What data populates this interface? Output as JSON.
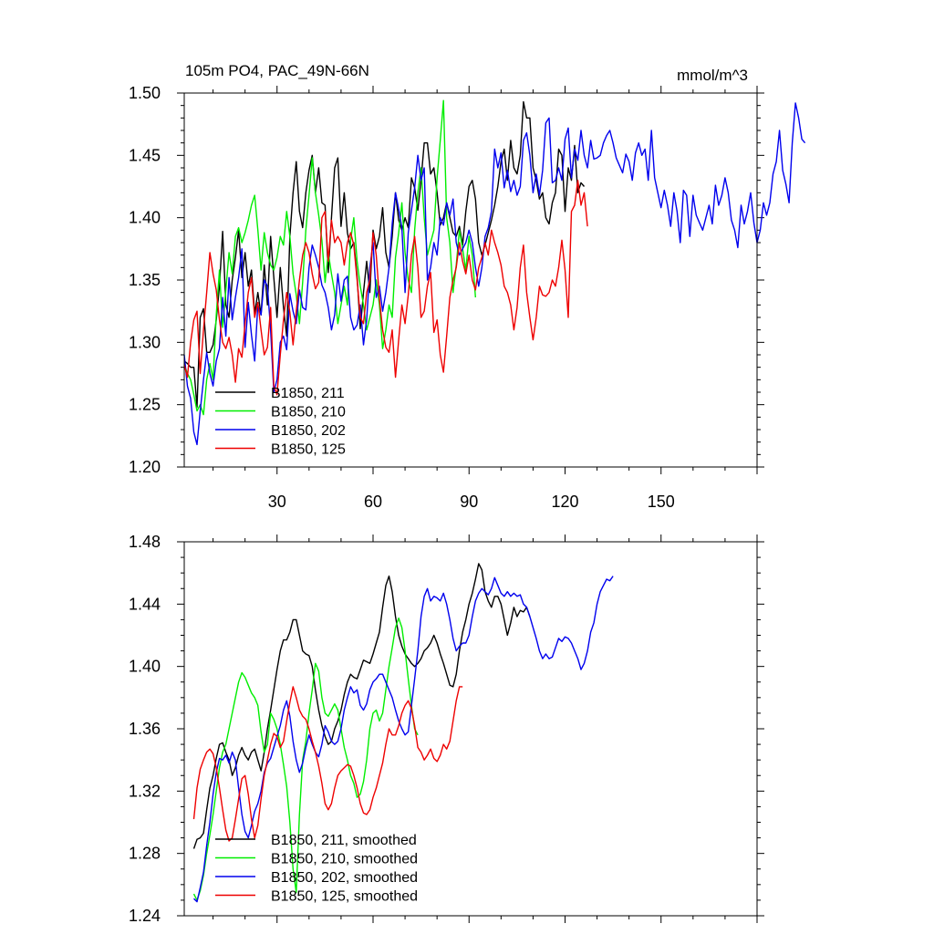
{
  "chart_data": [
    {
      "type": "line",
      "title": "105m PO4, PAC_49N-66N",
      "units": "mmol/m^3",
      "xlim": [
        1,
        180
      ],
      "ylim": [
        1.2,
        1.5
      ],
      "yticks": [
        "1.20",
        "1.25",
        "1.30",
        "1.35",
        "1.40",
        "1.45",
        "1.50"
      ],
      "xticks": [
        "30",
        "60",
        "90",
        "120",
        "150"
      ],
      "legend_position": "bottom-left",
      "series": [
        {
          "name": "B1850, 211",
          "color": "#000000",
          "x_start": 1,
          "values": [
            1.285,
            1.283,
            1.28,
            1.28,
            1.248,
            1.32,
            1.327,
            1.292,
            1.292,
            1.298,
            1.318,
            1.345,
            1.389,
            1.33,
            1.32,
            1.35,
            1.368,
            1.39,
            1.352,
            1.372,
            1.345,
            1.358,
            1.323,
            1.34,
            1.322,
            1.362,
            1.33,
            1.385,
            1.352,
            1.32,
            1.36,
            1.328,
            1.305,
            1.385,
            1.42,
            1.445,
            1.405,
            1.392,
            1.42,
            1.438,
            1.45,
            1.42,
            1.44,
            1.412,
            1.41,
            1.356,
            1.4,
            1.44,
            1.448,
            1.393,
            1.42,
            1.388,
            1.375,
            1.38,
            1.353,
            1.311,
            1.34,
            1.365,
            1.34,
            1.39,
            1.375,
            1.385,
            1.408,
            1.372,
            1.36,
            1.385,
            1.42,
            1.398,
            1.39,
            1.4,
            1.392,
            1.432,
            1.424,
            1.406,
            1.43,
            1.46,
            1.46,
            1.435,
            1.44,
            1.42,
            1.394,
            1.4,
            1.412,
            1.4,
            1.388,
            1.385,
            1.393,
            1.378,
            1.405,
            1.425,
            1.43,
            1.415,
            1.38,
            1.37,
            1.378,
            1.388,
            1.398,
            1.41,
            1.425,
            1.445,
            1.455,
            1.43,
            1.462,
            1.44,
            1.435,
            1.45,
            1.493,
            1.48,
            1.48,
            1.44,
            1.43,
            1.415,
            1.42,
            1.4,
            1.395,
            1.412,
            1.42,
            1.455,
            1.45,
            1.405,
            1.44,
            1.43,
            1.458,
            1.42,
            1.428,
            1.425
          ]
        },
        {
          "name": "B1850, 210",
          "color": "#00ee00",
          "x_start": 1,
          "values": [
            1.282,
            1.275,
            1.27,
            1.258,
            1.245,
            1.25,
            1.242,
            1.27,
            1.283,
            1.27,
            1.322,
            1.358,
            1.312,
            1.342,
            1.372,
            1.355,
            1.385,
            1.392,
            1.38,
            1.388,
            1.398,
            1.41,
            1.418,
            1.39,
            1.358,
            1.388,
            1.372,
            1.362,
            1.358,
            1.368,
            1.385,
            1.378,
            1.405,
            1.385,
            1.355,
            1.338,
            1.315,
            1.348,
            1.39,
            1.418,
            1.448,
            1.42,
            1.402,
            1.382,
            1.348,
            1.372,
            1.355,
            1.34,
            1.315,
            1.33,
            1.345,
            1.33,
            1.382,
            1.4,
            1.365,
            1.345,
            1.33,
            1.31,
            1.32,
            1.33,
            1.35,
            1.33,
            1.295,
            1.31,
            1.33,
            1.32,
            1.368,
            1.388,
            1.412,
            1.372,
            1.35,
            1.34,
            1.39,
            1.42,
            1.44,
            1.4,
            1.37,
            1.38,
            1.39,
            1.432,
            1.462,
            1.494,
            1.4,
            1.38,
            1.34,
            1.362,
            1.39,
            1.375,
            1.358,
            1.385,
            1.37,
            1.336
          ]
        },
        {
          "name": "B1850, 202",
          "color": "#0000ee",
          "x_start": 1,
          "values": [
            1.29,
            1.265,
            1.255,
            1.228,
            1.218,
            1.245,
            1.27,
            1.292,
            1.275,
            1.265,
            1.285,
            1.295,
            1.336,
            1.305,
            1.352,
            1.318,
            1.336,
            1.352,
            1.375,
            1.296,
            1.332,
            1.306,
            1.285,
            1.33,
            1.322,
            1.35,
            1.345,
            1.31,
            1.26,
            1.27,
            1.3,
            1.305,
            1.294,
            1.339,
            1.325,
            1.315,
            1.342,
            1.328,
            1.326,
            1.36,
            1.378,
            1.37,
            1.36,
            1.346,
            1.34,
            1.328,
            1.31,
            1.322,
            1.355,
            1.333,
            1.35,
            1.353,
            1.32,
            1.31,
            1.314,
            1.33,
            1.298,
            1.318,
            1.36,
            1.38,
            1.336,
            1.345,
            1.325,
            1.34,
            1.36,
            1.395,
            1.42,
            1.407,
            1.392,
            1.34,
            1.388,
            1.406,
            1.424,
            1.45,
            1.43,
            1.44,
            1.35,
            1.36,
            1.38,
            1.37,
            1.4,
            1.394,
            1.412,
            1.402,
            1.415,
            1.38,
            1.37,
            1.375,
            1.38,
            1.39,
            1.38,
            1.36,
            1.345,
            1.36,
            1.385,
            1.392,
            1.405,
            1.455,
            1.44,
            1.452,
            1.424,
            1.438,
            1.421,
            1.43,
            1.418,
            1.425,
            1.462,
            1.468,
            1.45,
            1.42,
            1.435,
            1.418,
            1.438,
            1.476,
            1.48,
            1.428,
            1.43,
            1.44,
            1.43,
            1.463,
            1.472,
            1.432,
            1.455,
            1.446,
            1.47,
            1.45,
            1.44,
            1.462,
            1.447,
            1.448,
            1.45,
            1.46,
            1.466,
            1.47,
            1.46,
            1.448,
            1.442,
            1.436,
            1.451,
            1.445,
            1.43,
            1.452,
            1.46,
            1.45,
            1.455,
            1.43,
            1.47,
            1.432,
            1.42,
            1.408,
            1.422,
            1.41,
            1.393,
            1.42,
            1.405,
            1.38,
            1.422,
            1.418,
            1.385,
            1.418,
            1.402,
            1.396,
            1.39,
            1.4,
            1.41,
            1.395,
            1.426,
            1.41,
            1.418,
            1.432,
            1.42,
            1.398,
            1.39,
            1.376,
            1.41,
            1.395,
            1.405,
            1.42,
            1.396,
            1.38,
            1.39,
            1.412,
            1.402,
            1.412,
            1.435,
            1.445,
            1.47,
            1.438,
            1.427,
            1.412,
            1.46,
            1.492,
            1.48,
            1.463,
            1.46
          ]
        },
        {
          "name": "B1850, 125",
          "color": "#ee0000",
          "x_start": 1,
          "values": [
            1.282,
            1.272,
            1.3,
            1.318,
            1.325,
            1.275,
            1.31,
            1.34,
            1.372,
            1.355,
            1.342,
            1.318,
            1.3,
            1.295,
            1.304,
            1.29,
            1.268,
            1.295,
            1.288,
            1.315,
            1.34,
            1.352,
            1.32,
            1.332,
            1.31,
            1.29,
            1.296,
            1.328,
            1.265,
            1.258,
            1.29,
            1.318,
            1.34,
            1.324,
            1.298,
            1.325,
            1.35,
            1.37,
            1.38,
            1.372,
            1.355,
            1.343,
            1.348,
            1.4,
            1.405,
            1.365,
            1.398,
            1.38,
            1.385,
            1.38,
            1.362,
            1.38,
            1.388,
            1.378,
            1.35,
            1.32,
            1.315,
            1.34,
            1.35,
            1.388,
            1.37,
            1.335,
            1.31,
            1.296,
            1.292,
            1.31,
            1.272,
            1.302,
            1.33,
            1.315,
            1.338,
            1.37,
            1.385,
            1.36,
            1.32,
            1.325,
            1.345,
            1.356,
            1.308,
            1.318,
            1.29,
            1.276,
            1.305,
            1.336,
            1.35,
            1.36,
            1.38,
            1.365,
            1.355,
            1.37,
            1.35,
            1.342,
            1.36,
            1.368,
            1.38,
            1.37,
            1.39,
            1.38,
            1.372,
            1.362,
            1.345,
            1.34,
            1.33,
            1.31,
            1.328,
            1.36,
            1.378,
            1.34,
            1.32,
            1.302,
            1.32,
            1.345,
            1.338,
            1.337,
            1.34,
            1.35,
            1.345,
            1.36,
            1.382,
            1.358,
            1.32,
            1.405,
            1.41,
            1.43,
            1.41,
            1.42,
            1.393
          ]
        }
      ]
    },
    {
      "type": "line",
      "xlim": [
        1,
        180
      ],
      "ylim": [
        1.24,
        1.48
      ],
      "yticks": [
        "1.24",
        "1.28",
        "1.32",
        "1.36",
        "1.40",
        "1.44",
        "1.48"
      ],
      "legend_position": "bottom-left",
      "series": [
        {
          "name": "B1850, 211, smoothed",
          "color": "#000000",
          "x_start": 4,
          "values": [
            1.283,
            1.289,
            1.29,
            1.293,
            1.308,
            1.322,
            1.33,
            1.341,
            1.35,
            1.351,
            1.345,
            1.34,
            1.33,
            1.335,
            1.343,
            1.348,
            1.343,
            1.34,
            1.345,
            1.347,
            1.34,
            1.333,
            1.345,
            1.36,
            1.372,
            1.385,
            1.398,
            1.41,
            1.417,
            1.417,
            1.422,
            1.43,
            1.43,
            1.42,
            1.41,
            1.408,
            1.407,
            1.4,
            1.385,
            1.372,
            1.362,
            1.355,
            1.35,
            1.352,
            1.36,
            1.365,
            1.372,
            1.382,
            1.39,
            1.395,
            1.393,
            1.392,
            1.398,
            1.404,
            1.403,
            1.402,
            1.408,
            1.415,
            1.422,
            1.438,
            1.452,
            1.458,
            1.448,
            1.432,
            1.42,
            1.413,
            1.408,
            1.405,
            1.402,
            1.4,
            1.402,
            1.405,
            1.41,
            1.412,
            1.415,
            1.42,
            1.415,
            1.408,
            1.402,
            1.395,
            1.388,
            1.387,
            1.395,
            1.41,
            1.422,
            1.43,
            1.44,
            1.447,
            1.456,
            1.466,
            1.462,
            1.448,
            1.442,
            1.438,
            1.445,
            1.445,
            1.44,
            1.43,
            1.42,
            1.428,
            1.438,
            1.432,
            1.436,
            1.435,
            1.438,
            1.432
          ]
        },
        {
          "name": "B1850, 210, smoothed",
          "color": "#00ee00",
          "x_start": 4,
          "values": [
            1.254,
            1.25,
            1.256,
            1.266,
            1.28,
            1.292,
            1.305,
            1.32,
            1.335,
            1.345,
            1.35,
            1.36,
            1.37,
            1.38,
            1.39,
            1.396,
            1.393,
            1.388,
            1.383,
            1.38,
            1.375,
            1.358,
            1.345,
            1.35,
            1.37,
            1.366,
            1.36,
            1.35,
            1.337,
            1.323,
            1.3,
            1.27,
            1.255,
            1.305,
            1.34,
            1.352,
            1.37,
            1.385,
            1.402,
            1.397,
            1.38,
            1.37,
            1.368,
            1.372,
            1.376,
            1.372,
            1.36,
            1.348,
            1.34,
            1.33,
            1.325,
            1.316,
            1.318,
            1.326,
            1.34,
            1.36,
            1.37,
            1.372,
            1.365,
            1.37,
            1.385,
            1.4,
            1.412,
            1.425,
            1.431,
            1.425,
            1.41,
            1.392,
            1.375,
            1.36,
            1.356
          ]
        },
        {
          "name": "B1850, 202, smoothed",
          "color": "#0000ee",
          "x_start": 4,
          "values": [
            1.251,
            1.249,
            1.258,
            1.268,
            1.285,
            1.3,
            1.318,
            1.332,
            1.341,
            1.34,
            1.343,
            1.338,
            1.345,
            1.34,
            1.322,
            1.305,
            1.294,
            1.29,
            1.298,
            1.307,
            1.312,
            1.32,
            1.332,
            1.338,
            1.341,
            1.348,
            1.355,
            1.362,
            1.372,
            1.378,
            1.368,
            1.352,
            1.34,
            1.332,
            1.338,
            1.348,
            1.356,
            1.35,
            1.345,
            1.342,
            1.35,
            1.362,
            1.358,
            1.352,
            1.35,
            1.352,
            1.36,
            1.372,
            1.38,
            1.387,
            1.383,
            1.385,
            1.375,
            1.372,
            1.376,
            1.385,
            1.39,
            1.392,
            1.395,
            1.395,
            1.39,
            1.385,
            1.38,
            1.372,
            1.365,
            1.36,
            1.356,
            1.358,
            1.375,
            1.392,
            1.41,
            1.432,
            1.445,
            1.45,
            1.442,
            1.445,
            1.444,
            1.442,
            1.447,
            1.44,
            1.43,
            1.418,
            1.41,
            1.413,
            1.415,
            1.415,
            1.42,
            1.432,
            1.442,
            1.447,
            1.45,
            1.448,
            1.446,
            1.45,
            1.457,
            1.452,
            1.447,
            1.445,
            1.448,
            1.445,
            1.447,
            1.445,
            1.446,
            1.44,
            1.438,
            1.432,
            1.425,
            1.418,
            1.41,
            1.405,
            1.408,
            1.405,
            1.406,
            1.412,
            1.418,
            1.416,
            1.419,
            1.418,
            1.415,
            1.41,
            1.405,
            1.398,
            1.402,
            1.41,
            1.422,
            1.428,
            1.44,
            1.448,
            1.452,
            1.456,
            1.455,
            1.458
          ]
        },
        {
          "name": "B1850, 125, smoothed",
          "color": "#ee0000",
          "x_start": 4,
          "values": [
            1.302,
            1.322,
            1.334,
            1.34,
            1.345,
            1.347,
            1.344,
            1.335,
            1.322,
            1.308,
            1.295,
            1.288,
            1.29,
            1.302,
            1.315,
            1.328,
            1.33,
            1.318,
            1.302,
            1.29,
            1.298,
            1.315,
            1.33,
            1.34,
            1.35,
            1.357,
            1.355,
            1.348,
            1.352,
            1.365,
            1.377,
            1.387,
            1.38,
            1.372,
            1.368,
            1.366,
            1.36,
            1.352,
            1.345,
            1.336,
            1.325,
            1.312,
            1.308,
            1.312,
            1.322,
            1.33,
            1.333,
            1.335,
            1.337,
            1.336,
            1.33,
            1.322,
            1.312,
            1.306,
            1.305,
            1.308,
            1.316,
            1.322,
            1.33,
            1.338,
            1.35,
            1.36,
            1.356,
            1.356,
            1.362,
            1.37,
            1.375,
            1.378,
            1.373,
            1.362,
            1.348,
            1.345,
            1.34,
            1.343,
            1.347,
            1.341,
            1.339,
            1.343,
            1.35,
            1.347,
            1.352,
            1.365,
            1.378,
            1.387,
            1.387
          ]
        }
      ]
    }
  ]
}
